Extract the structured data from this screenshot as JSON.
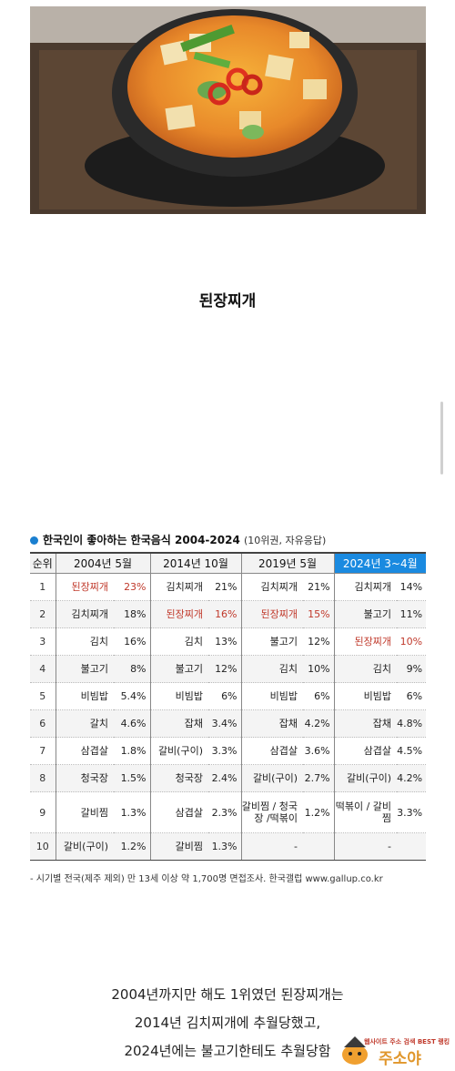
{
  "caption": "된장찌개",
  "survey": {
    "title": "한국인이 좋아하는 한국음식 2004-2024",
    "subtitle": "(10위권, 자유응답)",
    "headers": [
      "순위",
      "2004년 5월",
      "2014년 10월",
      "2019년 5월",
      "2024년 3~4월"
    ],
    "rows": [
      {
        "rank": "1",
        "cells": [
          [
            "된장찌개",
            "23%"
          ],
          [
            "김치찌개",
            "21%"
          ],
          [
            "김치찌개",
            "21%"
          ],
          [
            "김치찌개",
            "14%"
          ]
        ]
      },
      {
        "rank": "2",
        "cells": [
          [
            "김치찌개",
            "18%"
          ],
          [
            "된장찌개",
            "16%"
          ],
          [
            "된장찌개",
            "15%"
          ],
          [
            "불고기",
            "11%"
          ]
        ]
      },
      {
        "rank": "3",
        "cells": [
          [
            "김치",
            "16%"
          ],
          [
            "김치",
            "13%"
          ],
          [
            "불고기",
            "12%"
          ],
          [
            "된장찌개",
            "10%"
          ]
        ]
      },
      {
        "rank": "4",
        "cells": [
          [
            "불고기",
            "8%"
          ],
          [
            "불고기",
            "12%"
          ],
          [
            "김치",
            "10%"
          ],
          [
            "김치",
            "9%"
          ]
        ]
      },
      {
        "rank": "5",
        "cells": [
          [
            "비빔밥",
            "5.4%"
          ],
          [
            "비빔밥",
            "6%"
          ],
          [
            "비빔밥",
            "6%"
          ],
          [
            "비빔밥",
            "6%"
          ]
        ]
      },
      {
        "rank": "6",
        "cells": [
          [
            "갈치",
            "4.6%"
          ],
          [
            "잡채",
            "3.4%"
          ],
          [
            "잡채",
            "4.2%"
          ],
          [
            "잡채",
            "4.8%"
          ]
        ]
      },
      {
        "rank": "7",
        "cells": [
          [
            "삼겹살",
            "1.8%"
          ],
          [
            "갈비(구이)",
            "3.3%"
          ],
          [
            "삼겹살",
            "3.6%"
          ],
          [
            "삼겹살",
            "4.5%"
          ]
        ]
      },
      {
        "rank": "8",
        "cells": [
          [
            "청국장",
            "1.5%"
          ],
          [
            "청국장",
            "2.4%"
          ],
          [
            "갈비(구이)",
            "2.7%"
          ],
          [
            "갈비(구이)",
            "4.2%"
          ]
        ]
      },
      {
        "rank": "9",
        "cells": [
          [
            "갈비찜",
            "1.3%"
          ],
          [
            "삼겹살",
            "2.3%"
          ],
          [
            "갈비찜 / 청국장 /떡볶이",
            "1.2%"
          ],
          [
            "떡볶이 / 갈비찜",
            "3.3%"
          ]
        ]
      },
      {
        "rank": "10",
        "cells": [
          [
            "갈비(구이)",
            "1.2%"
          ],
          [
            "갈비찜",
            "1.3%"
          ],
          [
            "-",
            ""
          ],
          [
            "-",
            ""
          ]
        ]
      }
    ],
    "note": "- 시기별 전국(제주 제외) 만 13세 이상 약 1,700명 면접조사. 한국갤럽 www.gallup.co.kr",
    "highlight_color": "#1a8ae0",
    "emphasis_color": "#c0392b"
  },
  "body_text": {
    "line1": "2004년까지만 해도 1위였던 된장찌개는",
    "line2": "2014년 김치찌개에 추월당했고,",
    "line3": "2024년에는 불고기한테도 추월당함"
  },
  "watermark": {
    "tagline": "웹사이트 주소 검색 BEST 랭킹",
    "brand": "주소야"
  }
}
